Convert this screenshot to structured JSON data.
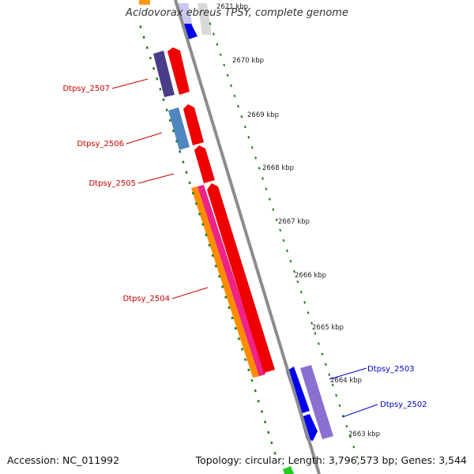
{
  "title": "Acidovorax ebreus TPSY, complete genome",
  "footer": {
    "accession": "Accession: NC_011992",
    "summary": "Topology: circular; Length: 3,796,573 bp; Genes: 3,544"
  },
  "ticks": [
    "2671 kbp",
    "2670 kbp",
    "2669 kbp",
    "2668 kbp",
    "2667 kbp",
    "2666 kbp",
    "2665 kbp",
    "2664 kbp",
    "2663 kbp"
  ],
  "genes": {
    "dtpsy_2507": "Dtpsy_2507",
    "dtpsy_2506": "Dtpsy_2506",
    "dtpsy_2505": "Dtpsy_2505",
    "dtpsy_2504": "Dtpsy_2504",
    "dtpsy_2503": "Dtpsy_2503",
    "dtpsy_2502": "Dtpsy_2502"
  },
  "colors": {
    "backbone": "#8c8c8c",
    "tick_major": "#1a7f1a",
    "label_red": "#cc0000",
    "label_blue": "#0000cc",
    "cds_red": "#ee0000",
    "cds_blue": "#0000ee",
    "cds_purple": "#8a70d0",
    "cds_navy": "#4b3c8a",
    "cds_steel": "#4f86c0",
    "cds_orange": "#ff8c00",
    "cds_pink": "#ee2288"
  }
}
